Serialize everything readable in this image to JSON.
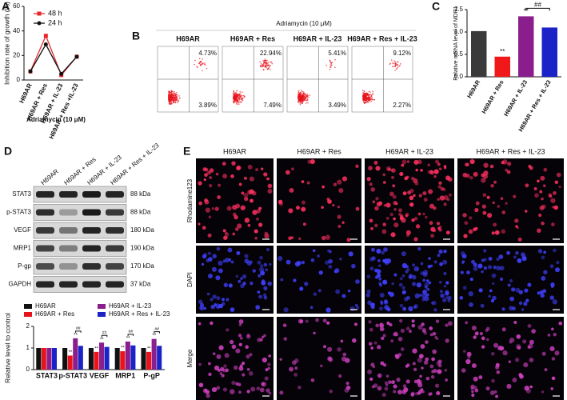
{
  "panel_labels": [
    "A",
    "B",
    "C",
    "D",
    "E"
  ],
  "chart_data": [
    {
      "type": "line",
      "x_label": "Adriamycin (10 μM)",
      "y_label": "Inhibition rate of growth (%)",
      "categories": [
        "H69AR",
        "H69AR + Res",
        "H69AR + IL-23",
        "H69AR + Res +IL-23"
      ],
      "series": [
        {
          "name": "48 h",
          "color": "#e8262a",
          "marker": "square",
          "values": [
            7,
            36,
            4,
            19
          ]
        },
        {
          "name": "24 h",
          "color": "#111111",
          "marker": "circle",
          "values": [
            7,
            29,
            5,
            19
          ]
        }
      ],
      "ylim": [
        0,
        60
      ],
      "yticks": [
        0,
        20,
        40,
        60
      ],
      "legend": "top-left"
    },
    {
      "type": "bar",
      "y_label": "Relative mRNA level of MDR1",
      "categories": [
        "H69AR",
        "H69AR + Res",
        "H69AR + IL-23",
        "H69AR + Res + IL-23"
      ],
      "values": [
        1.02,
        0.45,
        1.35,
        1.1
      ],
      "colors": [
        "#3a3a3a",
        "#f01818",
        "#8a1e8c",
        "#1a22c8"
      ],
      "ylim": [
        0,
        1.5
      ],
      "yticks": [
        {
          "value": 0,
          "label": "0.0"
        },
        {
          "value": 0.5,
          "label": "0.5"
        },
        {
          "value": 1,
          "label": "1.0"
        },
        {
          "value": 1.5,
          "label": "1.5"
        }
      ],
      "annotations": [
        {
          "text": "**",
          "category": 1
        },
        {
          "text": "**",
          "category": 2
        },
        {
          "text": "##",
          "bracket": [
            2,
            3
          ]
        }
      ]
    },
    {
      "type": "grouped-bar",
      "y_label": "Relative level to control",
      "categories": [
        "STAT3",
        "p-STAT3",
        "VEGF",
        "MRP1",
        "P-gP"
      ],
      "series": [
        {
          "name": "H69AR",
          "color": "#111111",
          "values": [
            1,
            1,
            1,
            1,
            1
          ]
        },
        {
          "name": "H69AR + Res",
          "color": "#e8141c",
          "values": [
            1,
            0.65,
            0.82,
            0.85,
            0.82
          ]
        },
        {
          "name": "H69AR + IL-23",
          "color": "#8a1e8c",
          "values": [
            1,
            1.45,
            1.25,
            1.3,
            1.42
          ]
        },
        {
          "name": "H69AR + Res + IL-23",
          "color": "#1a22c8",
          "values": [
            1,
            1.1,
            1.05,
            1.12,
            1.1
          ]
        }
      ],
      "ylim": [
        0,
        2
      ],
      "yticks": [
        0,
        1,
        2
      ],
      "legend": "top",
      "annotations": [
        {
          "text": "**",
          "category": 1,
          "series": 1
        },
        {
          "text": "**",
          "category": 1,
          "series": 2
        },
        {
          "text": "##",
          "category": 1,
          "bracket": [
            2,
            3
          ]
        },
        {
          "text": "**",
          "category": 2,
          "series": 1
        },
        {
          "text": "**",
          "category": 2,
          "series": 2
        },
        {
          "text": "##",
          "category": 2,
          "bracket": [
            2,
            3
          ]
        },
        {
          "text": "**",
          "category": 3,
          "series": 1
        },
        {
          "text": "**",
          "category": 3,
          "series": 2
        },
        {
          "text": "##",
          "category": 3,
          "bracket": [
            2,
            3
          ]
        },
        {
          "text": "**",
          "category": 4,
          "series": 1
        },
        {
          "text": "**",
          "category": 4,
          "series": 2
        },
        {
          "text": "##",
          "category": 4,
          "bracket": [
            2,
            3
          ]
        }
      ]
    }
  ],
  "flow_panel": {
    "title": "Adriamycin (10 μM)",
    "plots": [
      {
        "label": "H69AR",
        "upper_right": "4.73%",
        "lower_right": "3.89%"
      },
      {
        "label": "H69AR + Res",
        "upper_right": "22.94%",
        "lower_right": "7.49%"
      },
      {
        "label": "H69AR + IL-23",
        "upper_right": "5.41%",
        "lower_right": "3.49%"
      },
      {
        "label": "H69AR + Res + IL-23",
        "upper_right": "9.12%",
        "lower_right": "2.27%"
      }
    ]
  },
  "blot_panel": {
    "lanes": [
      "H69AR",
      "H69AR + Res",
      "H69AR + IL-23",
      "H69AR + Res + IL-23"
    ],
    "rows": [
      {
        "protein": "STAT3",
        "size": "88 kDa"
      },
      {
        "protein": "p-STAT3",
        "size": "88 kDa"
      },
      {
        "protein": "VEGF",
        "size": "180 kDa"
      },
      {
        "protein": "MRP1",
        "size": "190 kDa"
      },
      {
        "protein": "P-gp",
        "size": "170 kDa"
      },
      {
        "protein": "GAPDH",
        "size": "37 kDa"
      }
    ]
  },
  "image_panel": {
    "columns": [
      "H69AR",
      "H69AR + Res",
      "H69AR + IL-23",
      "H69AR + Res + IL-23"
    ],
    "rows": [
      "Rhodamine123",
      "DAPI",
      "Merge"
    ]
  }
}
